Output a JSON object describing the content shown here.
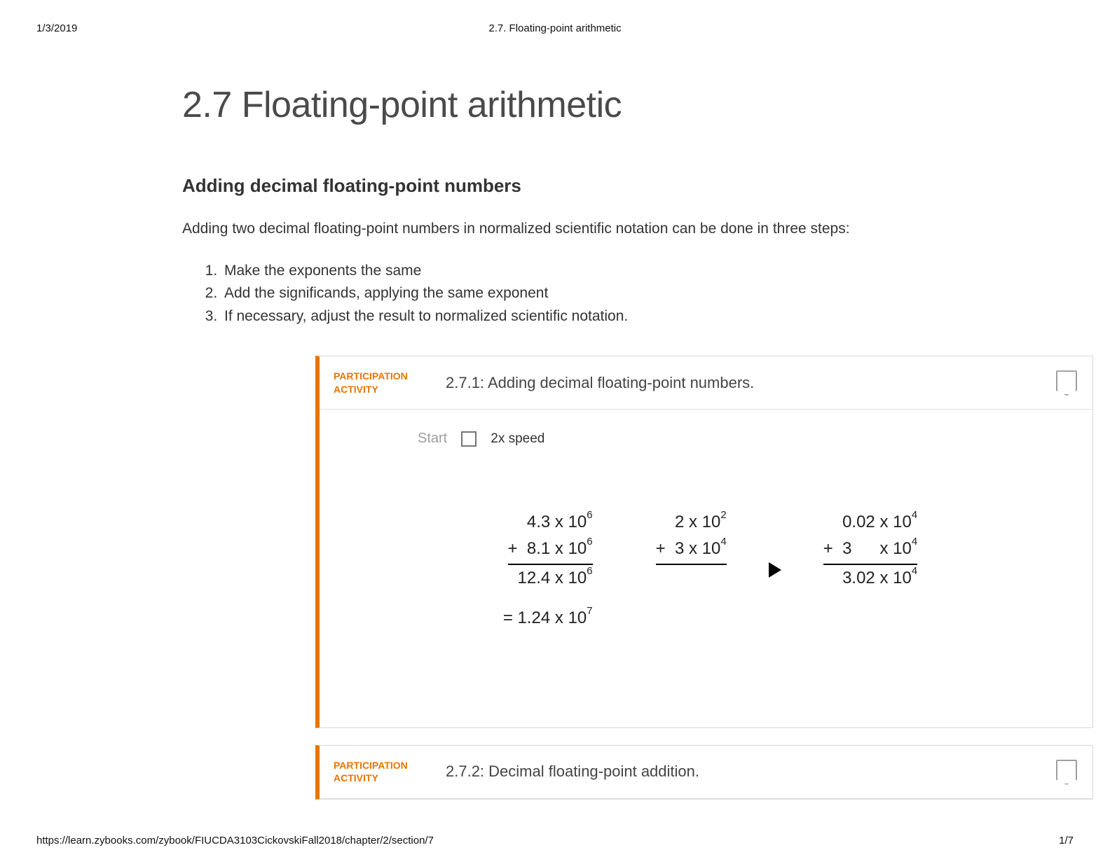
{
  "print": {
    "date": "1/3/2019",
    "header_title": "2.7. Floating-point arithmetic",
    "url": "https://learn.zybooks.com/zybook/FIUCDA3103CickovskiFall2018/chapter/2/section/7",
    "page_indicator": "1/7"
  },
  "colors": {
    "accent_orange": "#e87500",
    "border_gray": "#d9d9d9",
    "text_gray": "#4a4a4a",
    "muted_gray": "#9e9e9e"
  },
  "content": {
    "main_title": "2.7 Floating-point arithmetic",
    "sub_title": "Adding decimal floating-point numbers",
    "intro": "Adding two decimal floating-point numbers in normalized scientific notation can be done in three steps:",
    "steps": [
      "Make the exponents the same",
      "Add the significands, applying the same exponent",
      "If necessary, adjust the result to normalized scientific notation."
    ]
  },
  "activity1": {
    "label_line1": "PARTICIPATION",
    "label_line2": "ACTIVITY",
    "title": "2.7.1: Adding decimal floating-point numbers.",
    "start": "Start",
    "speed": "2x speed",
    "example1": {
      "line1": {
        "sig": "4.3",
        "base": "10",
        "exp": "6"
      },
      "line2": {
        "op": "+",
        "sig": "8.1",
        "base": "10",
        "exp": "6"
      },
      "sum": {
        "sig": "12.4",
        "base": "10",
        "exp": "6"
      },
      "norm": {
        "eq": "=",
        "sig": "1.24",
        "base": "10",
        "exp": "7"
      }
    },
    "example2": {
      "line1": {
        "sig": "2",
        "base": "10",
        "exp": "2"
      },
      "line2": {
        "op": "+",
        "sig": "3",
        "base": "10",
        "exp": "4"
      }
    },
    "example3": {
      "line1": {
        "sig": "0.02",
        "base": "10",
        "exp": "4"
      },
      "line2": {
        "op": "+",
        "sig": "3     ",
        "base": "10",
        "exp": "4"
      },
      "sum": {
        "sig": "3.02",
        "base": "10",
        "exp": "4"
      }
    }
  },
  "activity2": {
    "label_line1": "PARTICIPATION",
    "label_line2": "ACTIVITY",
    "title": "2.7.2: Decimal floating-point addition."
  }
}
